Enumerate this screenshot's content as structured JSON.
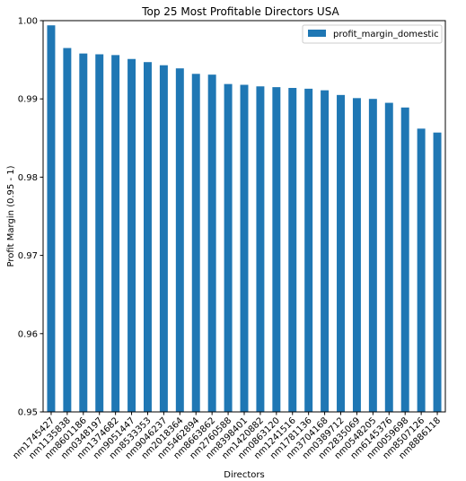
{
  "chart_data": {
    "type": "bar",
    "title": "Top 25 Most Profitable Directors USA",
    "xlabel": "Directors",
    "ylabel": "Profit Margin (0.95 - 1)",
    "ylim": [
      0.95,
      1.0
    ],
    "yticks": [
      "0.95",
      "0.96",
      "0.97",
      "0.98",
      "0.99",
      "1.00"
    ],
    "legend_position": "top-right",
    "bar_color": "#1f77b4",
    "series": [
      {
        "name": "profit_margin_domestic",
        "values": [
          0.9994,
          0.9965,
          0.9958,
          0.9957,
          0.9956,
          0.9951,
          0.9947,
          0.9943,
          0.9939,
          0.9932,
          0.9931,
          0.9919,
          0.9918,
          0.9916,
          0.9915,
          0.9914,
          0.9913,
          0.9911,
          0.9905,
          0.9901,
          0.99,
          0.9895,
          0.9889,
          0.9862,
          0.9857
        ]
      }
    ],
    "categories": [
      "nm1745427",
      "nm1135838",
      "nm8601186",
      "nm0348197",
      "nm1374682",
      "nm9051447",
      "nm8533353",
      "nm9046237",
      "nm2018364",
      "nm5462894",
      "nm8663862",
      "nm2760588",
      "nm8398401",
      "nm1420882",
      "nm0863120",
      "nm1241516",
      "nm1781136",
      "nm3704168",
      "nm0389712",
      "nm2835069",
      "nm0548205",
      "nm6145376",
      "nm0059698",
      "nm8507126",
      "nm8886118"
    ]
  }
}
